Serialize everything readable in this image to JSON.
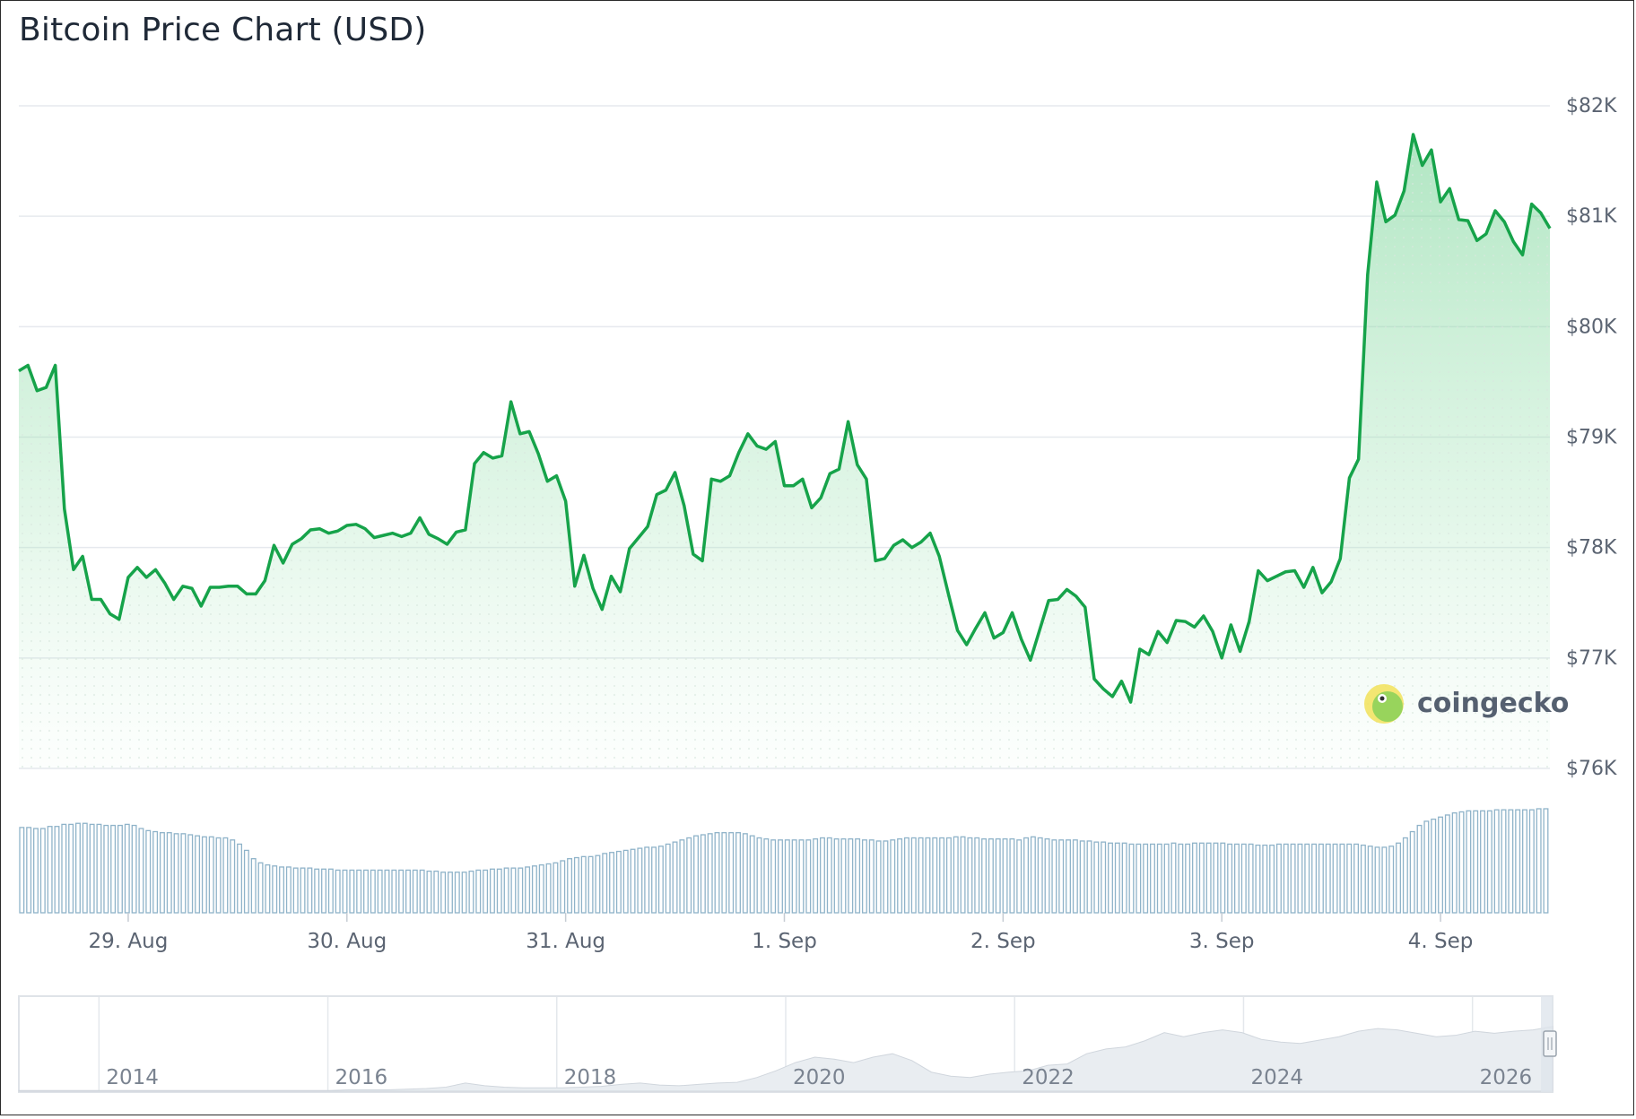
{
  "title": "Bitcoin Price Chart (USD)",
  "watermark": {
    "text": "coingecko",
    "icon": "coingecko-gecko-icon"
  },
  "colors": {
    "line": "#16a34a",
    "area": "#86d9a0",
    "volume": "#8fb3c9",
    "grid": "#e6e9ee",
    "navigator_fill": "#e9edf1",
    "navigator_line": "#d0d6dd"
  },
  "chart_data": {
    "type": "line",
    "title": "Bitcoin Price Chart (USD)",
    "xlabel": "",
    "ylabel": "",
    "ylim": [
      76000,
      82000
    ],
    "grid": true,
    "legend": "none",
    "y_ticks": [
      "$82K",
      "$81K",
      "$80K",
      "$79K",
      "$78K",
      "$77K",
      "$76K"
    ],
    "x_ticks": [
      "29. Aug",
      "30. Aug",
      "31. Aug",
      "1. Sep",
      "2. Sep",
      "3. Sep",
      "4. Sep"
    ],
    "x_range_days": [
      28.5,
      35.5
    ],
    "series": [
      {
        "values": [
          79600,
          79650,
          79420,
          79450,
          79650,
          78350,
          77800,
          77920,
          77530,
          77530,
          77400,
          77350,
          77730,
          77820,
          77730,
          77800,
          77680,
          77530,
          77650,
          77630,
          77470,
          77640,
          77640,
          77650,
          77650,
          77580,
          77580,
          77700,
          78020,
          77860,
          78030,
          78080,
          78160,
          78170,
          78130,
          78150,
          78200,
          78210,
          78170,
          78090,
          78110,
          78130,
          78100,
          78130,
          78270,
          78120,
          78080,
          78030,
          78140,
          78160,
          78760,
          78860,
          78810,
          78830,
          79320,
          79030,
          79050,
          78850,
          78600,
          78650,
          78420,
          77650,
          77930,
          77630,
          77440,
          77740,
          77600,
          77990,
          78090,
          78190,
          78480,
          78520,
          78680,
          78380,
          77940,
          77880,
          78620,
          78600,
          78650,
          78860,
          79030,
          78920,
          78890,
          78960,
          78560,
          78560,
          78620,
          78360,
          78450,
          78670,
          78710,
          79140,
          78750,
          78620,
          77880,
          77900,
          78020,
          78070,
          78000,
          78050,
          78130,
          77920,
          77580,
          77250,
          77120,
          77270,
          77410,
          77180,
          77230,
          77410,
          77170,
          76980,
          77250,
          77520,
          77530,
          77620,
          77560,
          77460,
          76810,
          76720,
          76650,
          76790,
          76600,
          77080,
          77030,
          77240,
          77140,
          77340,
          77330,
          77280,
          77380,
          77240,
          77000,
          77300,
          77060,
          77330,
          77790,
          77700,
          77740,
          77780,
          77790,
          77640,
          77820,
          77590,
          77690,
          77900,
          78630,
          78800,
          80470,
          81310,
          80950,
          81010,
          81230,
          81740,
          81460,
          81600,
          81130,
          81250,
          80970,
          80960,
          80780,
          80840,
          81050,
          80950,
          80770,
          80650,
          81110,
          81030,
          80890
        ]
      }
    ],
    "volume": [
      0.82,
      0.82,
      0.81,
      0.81,
      0.83,
      0.83,
      0.85,
      0.85,
      0.86,
      0.86,
      0.85,
      0.85,
      0.84,
      0.84,
      0.84,
      0.85,
      0.84,
      0.81,
      0.79,
      0.78,
      0.77,
      0.77,
      0.76,
      0.76,
      0.75,
      0.74,
      0.73,
      0.73,
      0.72,
      0.72,
      0.7,
      0.66,
      0.6,
      0.52,
      0.48,
      0.46,
      0.45,
      0.44,
      0.44,
      0.43,
      0.43,
      0.43,
      0.42,
      0.42,
      0.42,
      0.41,
      0.41,
      0.41,
      0.41,
      0.41,
      0.41,
      0.41,
      0.41,
      0.41,
      0.41,
      0.41,
      0.41,
      0.41,
      0.4,
      0.4,
      0.39,
      0.39,
      0.39,
      0.39,
      0.4,
      0.41,
      0.41,
      0.42,
      0.42,
      0.43,
      0.43,
      0.43,
      0.44,
      0.45,
      0.46,
      0.47,
      0.48,
      0.5,
      0.52,
      0.53,
      0.54,
      0.54,
      0.55,
      0.57,
      0.58,
      0.59,
      0.6,
      0.61,
      0.62,
      0.63,
      0.63,
      0.64,
      0.66,
      0.68,
      0.7,
      0.72,
      0.74,
      0.75,
      0.76,
      0.77,
      0.77,
      0.77,
      0.77,
      0.76,
      0.74,
      0.72,
      0.71,
      0.7,
      0.7,
      0.7,
      0.7,
      0.7,
      0.7,
      0.71,
      0.72,
      0.72,
      0.71,
      0.71,
      0.71,
      0.71,
      0.7,
      0.7,
      0.69,
      0.69,
      0.7,
      0.71,
      0.72,
      0.72,
      0.72,
      0.72,
      0.72,
      0.72,
      0.72,
      0.73,
      0.73,
      0.72,
      0.72,
      0.71,
      0.71,
      0.71,
      0.71,
      0.71,
      0.7,
      0.72,
      0.73,
      0.72,
      0.71,
      0.7,
      0.7,
      0.7,
      0.7,
      0.69,
      0.69,
      0.68,
      0.68,
      0.67,
      0.67,
      0.67,
      0.66,
      0.66,
      0.66,
      0.66,
      0.66,
      0.66,
      0.67,
      0.66,
      0.66,
      0.67,
      0.67,
      0.67,
      0.67,
      0.67,
      0.66,
      0.66,
      0.66,
      0.66,
      0.65,
      0.65,
      0.65,
      0.66,
      0.66,
      0.66,
      0.66,
      0.66,
      0.66,
      0.66,
      0.66,
      0.66,
      0.66,
      0.66,
      0.66,
      0.65,
      0.64,
      0.63,
      0.63,
      0.64,
      0.67,
      0.72,
      0.78,
      0.84,
      0.88,
      0.9,
      0.92,
      0.94,
      0.96,
      0.97,
      0.98,
      0.98,
      0.98,
      0.98,
      0.99,
      0.99,
      0.99,
      0.99,
      0.99,
      0.99,
      1.0,
      1.0
    ],
    "navigator": {
      "x_ticks": [
        "2014",
        "2016",
        "2018",
        "2020",
        "2022",
        "2024",
        "2026"
      ],
      "years": [
        2013.3,
        2026.7
      ],
      "values": [
        0.01,
        0.01,
        0.01,
        0.01,
        0.01,
        0.01,
        0.01,
        0.01,
        0.01,
        0.01,
        0.01,
        0.01,
        0.01,
        0.01,
        0.01,
        0.01,
        0.01,
        0.02,
        0.02,
        0.02,
        0.03,
        0.04,
        0.06,
        0.12,
        0.08,
        0.06,
        0.05,
        0.05,
        0.05,
        0.06,
        0.07,
        0.1,
        0.12,
        0.09,
        0.08,
        0.1,
        0.12,
        0.13,
        0.2,
        0.3,
        0.42,
        0.5,
        0.47,
        0.42,
        0.5,
        0.55,
        0.45,
        0.28,
        0.22,
        0.2,
        0.25,
        0.28,
        0.3,
        0.38,
        0.4,
        0.55,
        0.62,
        0.65,
        0.74,
        0.86,
        0.8,
        0.86,
        0.9,
        0.86,
        0.76,
        0.72,
        0.7,
        0.75,
        0.8,
        0.88,
        0.92,
        0.9,
        0.85,
        0.8,
        0.82,
        0.88,
        0.85,
        0.88,
        0.9,
        0.95
      ]
    }
  }
}
